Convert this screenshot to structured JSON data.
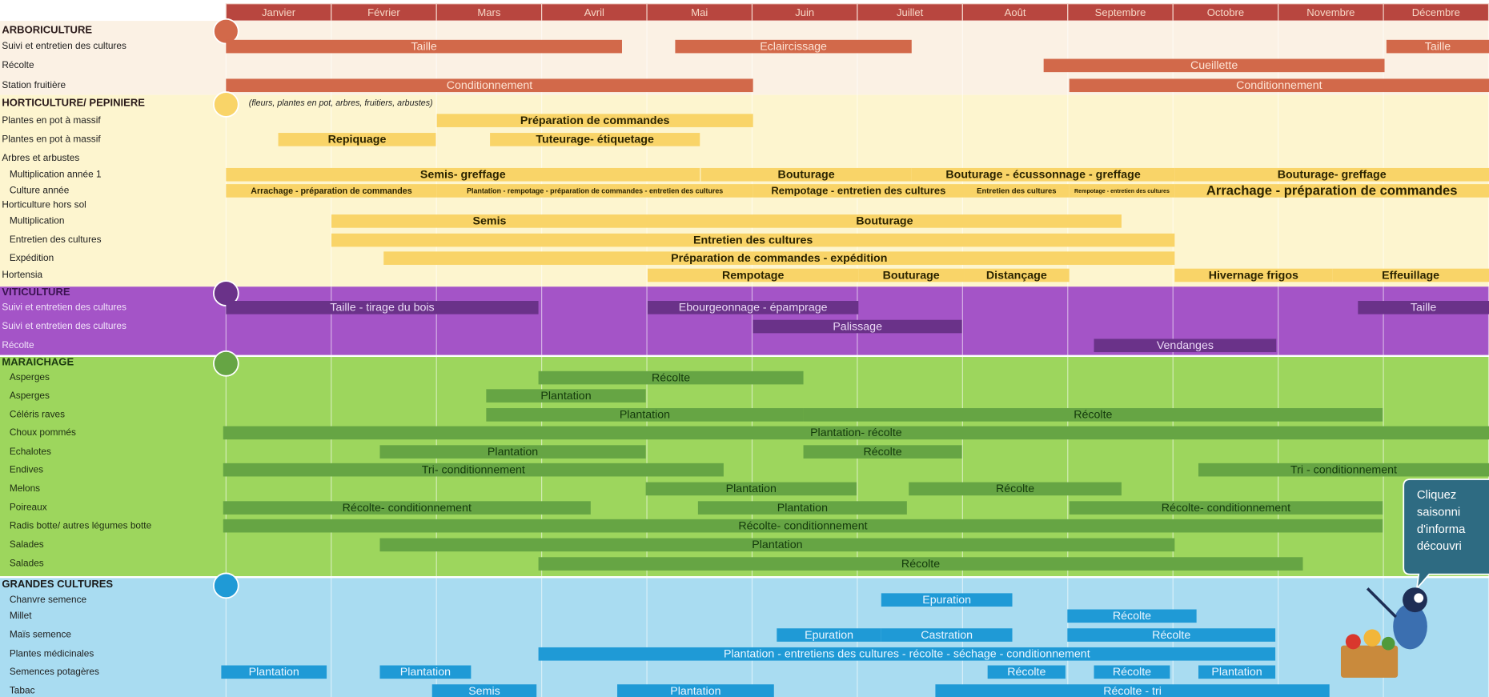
{
  "months": [
    "Janvier",
    "Février",
    "Mars",
    "Avril",
    "Mai",
    "Juin",
    "Juillet",
    "Août",
    "Septembre",
    "Octobre",
    "Novembre",
    "Décembre"
  ],
  "sections": [
    {
      "title": "ARBORICULTURE",
      "rows": [
        {
          "label": "Suivi et entretien des cultures",
          "bars": [
            "Taille",
            "Eclaircissage",
            "Taille"
          ]
        },
        {
          "label": "Récolte",
          "bars": [
            "Cueillette"
          ]
        },
        {
          "label": "Station fruitière",
          "bars": [
            "Conditionnement",
            "Conditionnement"
          ]
        }
      ]
    },
    {
      "title": "HORTICULTURE/ PEPINIERE",
      "note": "(fleurs, plantes en pot, arbres, fruitiers, arbustes)",
      "rows": [
        {
          "label": "Plantes en pot à massif",
          "bars": [
            "Préparation de commandes"
          ]
        },
        {
          "label": "Plantes en pot à massif",
          "bars": [
            "Repiquage",
            "Tuteurage- étiquetage"
          ]
        },
        {
          "label": "Arbres et arbustes",
          "bars": []
        },
        {
          "label": "Multiplication année 1",
          "bars": [
            "Semis- greffage",
            "Bouturage",
            "Bouturage  - écussonnage - greffage",
            "Bouturage- greffage"
          ]
        },
        {
          "label": "Culture année",
          "bars": [
            "Arrachage - préparation de commandes",
            "Plantation - rempotage - préparation de commandes - entretien des cultures",
            "Rempotage  - entretien des cultures",
            "Entretien des cultures",
            "Rempotage - entretien des cultures",
            "Arrachage   - préparation de commandes"
          ]
        },
        {
          "label": "Horticulture hors sol",
          "bars": []
        },
        {
          "label": "Multiplication",
          "bars": [
            "Semis",
            "Bouturage"
          ]
        },
        {
          "label": "Entretien des cultures",
          "bars": [
            "Entretien des cultures"
          ]
        },
        {
          "label": "Expédition",
          "bars": [
            "Préparation de commandes - expédition"
          ]
        },
        {
          "label": "Hortensia",
          "bars": [
            "Rempotage",
            "Bouturage",
            "Distançage",
            "Hivernage frigos",
            "Effeuillage"
          ]
        }
      ]
    },
    {
      "title": "VITICULTURE",
      "rows": [
        {
          "label": "Suivi et entretien des cultures",
          "bars": [
            "Taille - tirage du bois",
            "Ebourgeonnage - épamprage",
            "Taille"
          ]
        },
        {
          "label": "Suivi et entretien des cultures",
          "bars": [
            "Palissage"
          ]
        },
        {
          "label": "Récolte",
          "bars": [
            "Vendanges"
          ]
        }
      ]
    },
    {
      "title": "MARAICHAGE",
      "rows": [
        {
          "label": "Asperges",
          "bars": [
            "Récolte"
          ]
        },
        {
          "label": "Asperges",
          "bars": [
            "Plantation"
          ]
        },
        {
          "label": "Céléris raves",
          "bars": [
            "Plantation",
            "Récolte"
          ]
        },
        {
          "label": "Choux pommés",
          "bars": [
            "Plantation- récolte"
          ]
        },
        {
          "label": "Echalotes",
          "bars": [
            "Plantation",
            "Récolte"
          ]
        },
        {
          "label": "Endives",
          "bars": [
            "Tri- conditionnement",
            "Tri - conditionnement"
          ]
        },
        {
          "label": "Melons",
          "bars": [
            "Plantation",
            "Récolte"
          ]
        },
        {
          "label": "Poireaux",
          "bars": [
            "Récolte- conditionnement",
            "Plantation",
            "Récolte- conditionnement"
          ]
        },
        {
          "label": "Radis botte/ autres légumes botte",
          "bars": [
            "Récolte- conditionnement"
          ]
        },
        {
          "label": "Salades",
          "bars": [
            "Plantation"
          ]
        },
        {
          "label": "Salades",
          "bars": [
            "Récolte"
          ]
        }
      ]
    },
    {
      "title": "GRANDES CULTURES",
      "rows": [
        {
          "label": "Chanvre semence",
          "bars": [
            "Epuration"
          ]
        },
        {
          "label": "Millet",
          "bars": [
            "Récolte"
          ]
        },
        {
          "label": "Maïs semence",
          "bars": [
            "Epuration",
            "Castration",
            "Récolte"
          ]
        },
        {
          "label": "Plantes médicinales",
          "bars": [
            "Plantation  - entretiens des cultures - récolte - séchage  - conditionnement"
          ]
        },
        {
          "label": "Semences potagères",
          "bars": [
            "Plantation",
            "Plantation",
            "Récolte",
            "Récolte",
            "Plantation"
          ]
        },
        {
          "label": "Tabac",
          "bars": [
            "Semis",
            "Plantation",
            "Récolte - tri"
          ]
        }
      ]
    }
  ],
  "bubble": [
    "Cliquez",
    "saisonni",
    "d'informa",
    "découvri"
  ]
}
